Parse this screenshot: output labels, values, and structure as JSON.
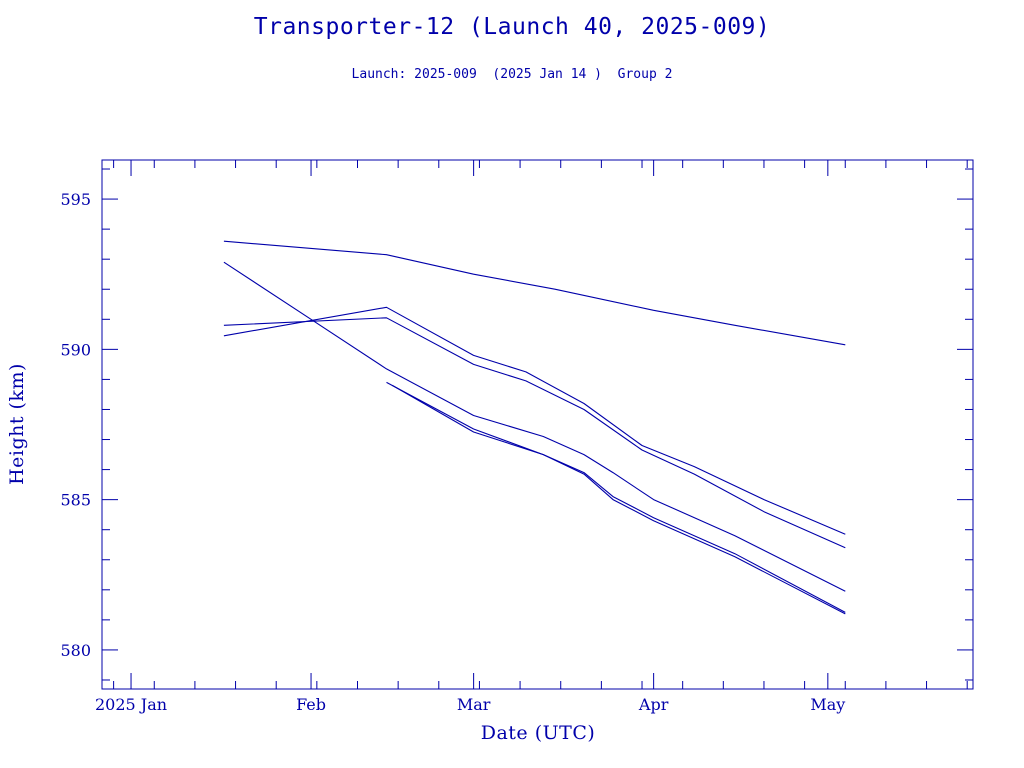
{
  "chart_data": {
    "type": "line",
    "title": "Transporter-12 (Launch 40, 2025-009)",
    "subtitle": "Launch: 2025-009  (2025 Jan 14 )  Group 2",
    "xlabel": "Date (UTC)",
    "ylabel": "Height (km)",
    "x_ticks": [
      "2025 Jan",
      "Feb",
      "Mar",
      "Apr",
      "May"
    ],
    "y_ticks": [
      580,
      585,
      590,
      595
    ],
    "xlim": [
      "2024-12-27",
      "2025-05-26"
    ],
    "ylim": [
      578.7,
      596.3
    ],
    "grid": false,
    "series": [
      {
        "x": [
          "2025-01-17",
          "2025-02-14",
          "2025-03-01",
          "2025-03-15",
          "2025-04-01",
          "2025-04-15",
          "2025-05-04"
        ],
        "y": [
          593.6,
          593.15,
          592.5,
          592.0,
          591.3,
          590.8,
          590.15
        ]
      },
      {
        "x": [
          "2025-01-17",
          "2025-02-14",
          "2025-03-01",
          "2025-03-10",
          "2025-03-20",
          "2025-03-30",
          "2025-04-08",
          "2025-04-20",
          "2025-05-04"
        ],
        "y": [
          590.45,
          591.4,
          589.8,
          589.25,
          588.2,
          586.8,
          586.1,
          585.0,
          583.85
        ]
      },
      {
        "x": [
          "2025-01-17",
          "2025-02-14",
          "2025-03-01",
          "2025-03-10",
          "2025-03-20",
          "2025-03-30",
          "2025-04-08",
          "2025-04-20",
          "2025-05-04"
        ],
        "y": [
          590.8,
          591.05,
          589.5,
          588.95,
          588.0,
          586.65,
          585.85,
          584.6,
          583.4
        ]
      },
      {
        "x": [
          "2025-01-17",
          "2025-02-01",
          "2025-02-14",
          "2025-03-01",
          "2025-03-13",
          "2025-03-20",
          "2025-03-25",
          "2025-04-01",
          "2025-04-15",
          "2025-05-04"
        ],
        "y": [
          592.9,
          591.0,
          589.35,
          587.8,
          587.1,
          586.5,
          585.9,
          585.0,
          583.8,
          581.95
        ]
      },
      {
        "x": [
          "2025-02-14",
          "2025-03-01",
          "2025-03-13",
          "2025-03-20",
          "2025-03-25",
          "2025-04-01",
          "2025-04-15",
          "2025-05-04"
        ],
        "y": [
          588.9,
          587.35,
          586.5,
          585.9,
          585.1,
          584.4,
          583.2,
          581.25
        ]
      },
      {
        "x": [
          "2025-02-15",
          "2025-03-01",
          "2025-03-13",
          "2025-03-20",
          "2025-03-25",
          "2025-04-01",
          "2025-04-15",
          "2025-05-04"
        ],
        "y": [
          588.8,
          587.25,
          586.5,
          585.85,
          585.0,
          584.3,
          583.1,
          581.2
        ]
      }
    ]
  }
}
